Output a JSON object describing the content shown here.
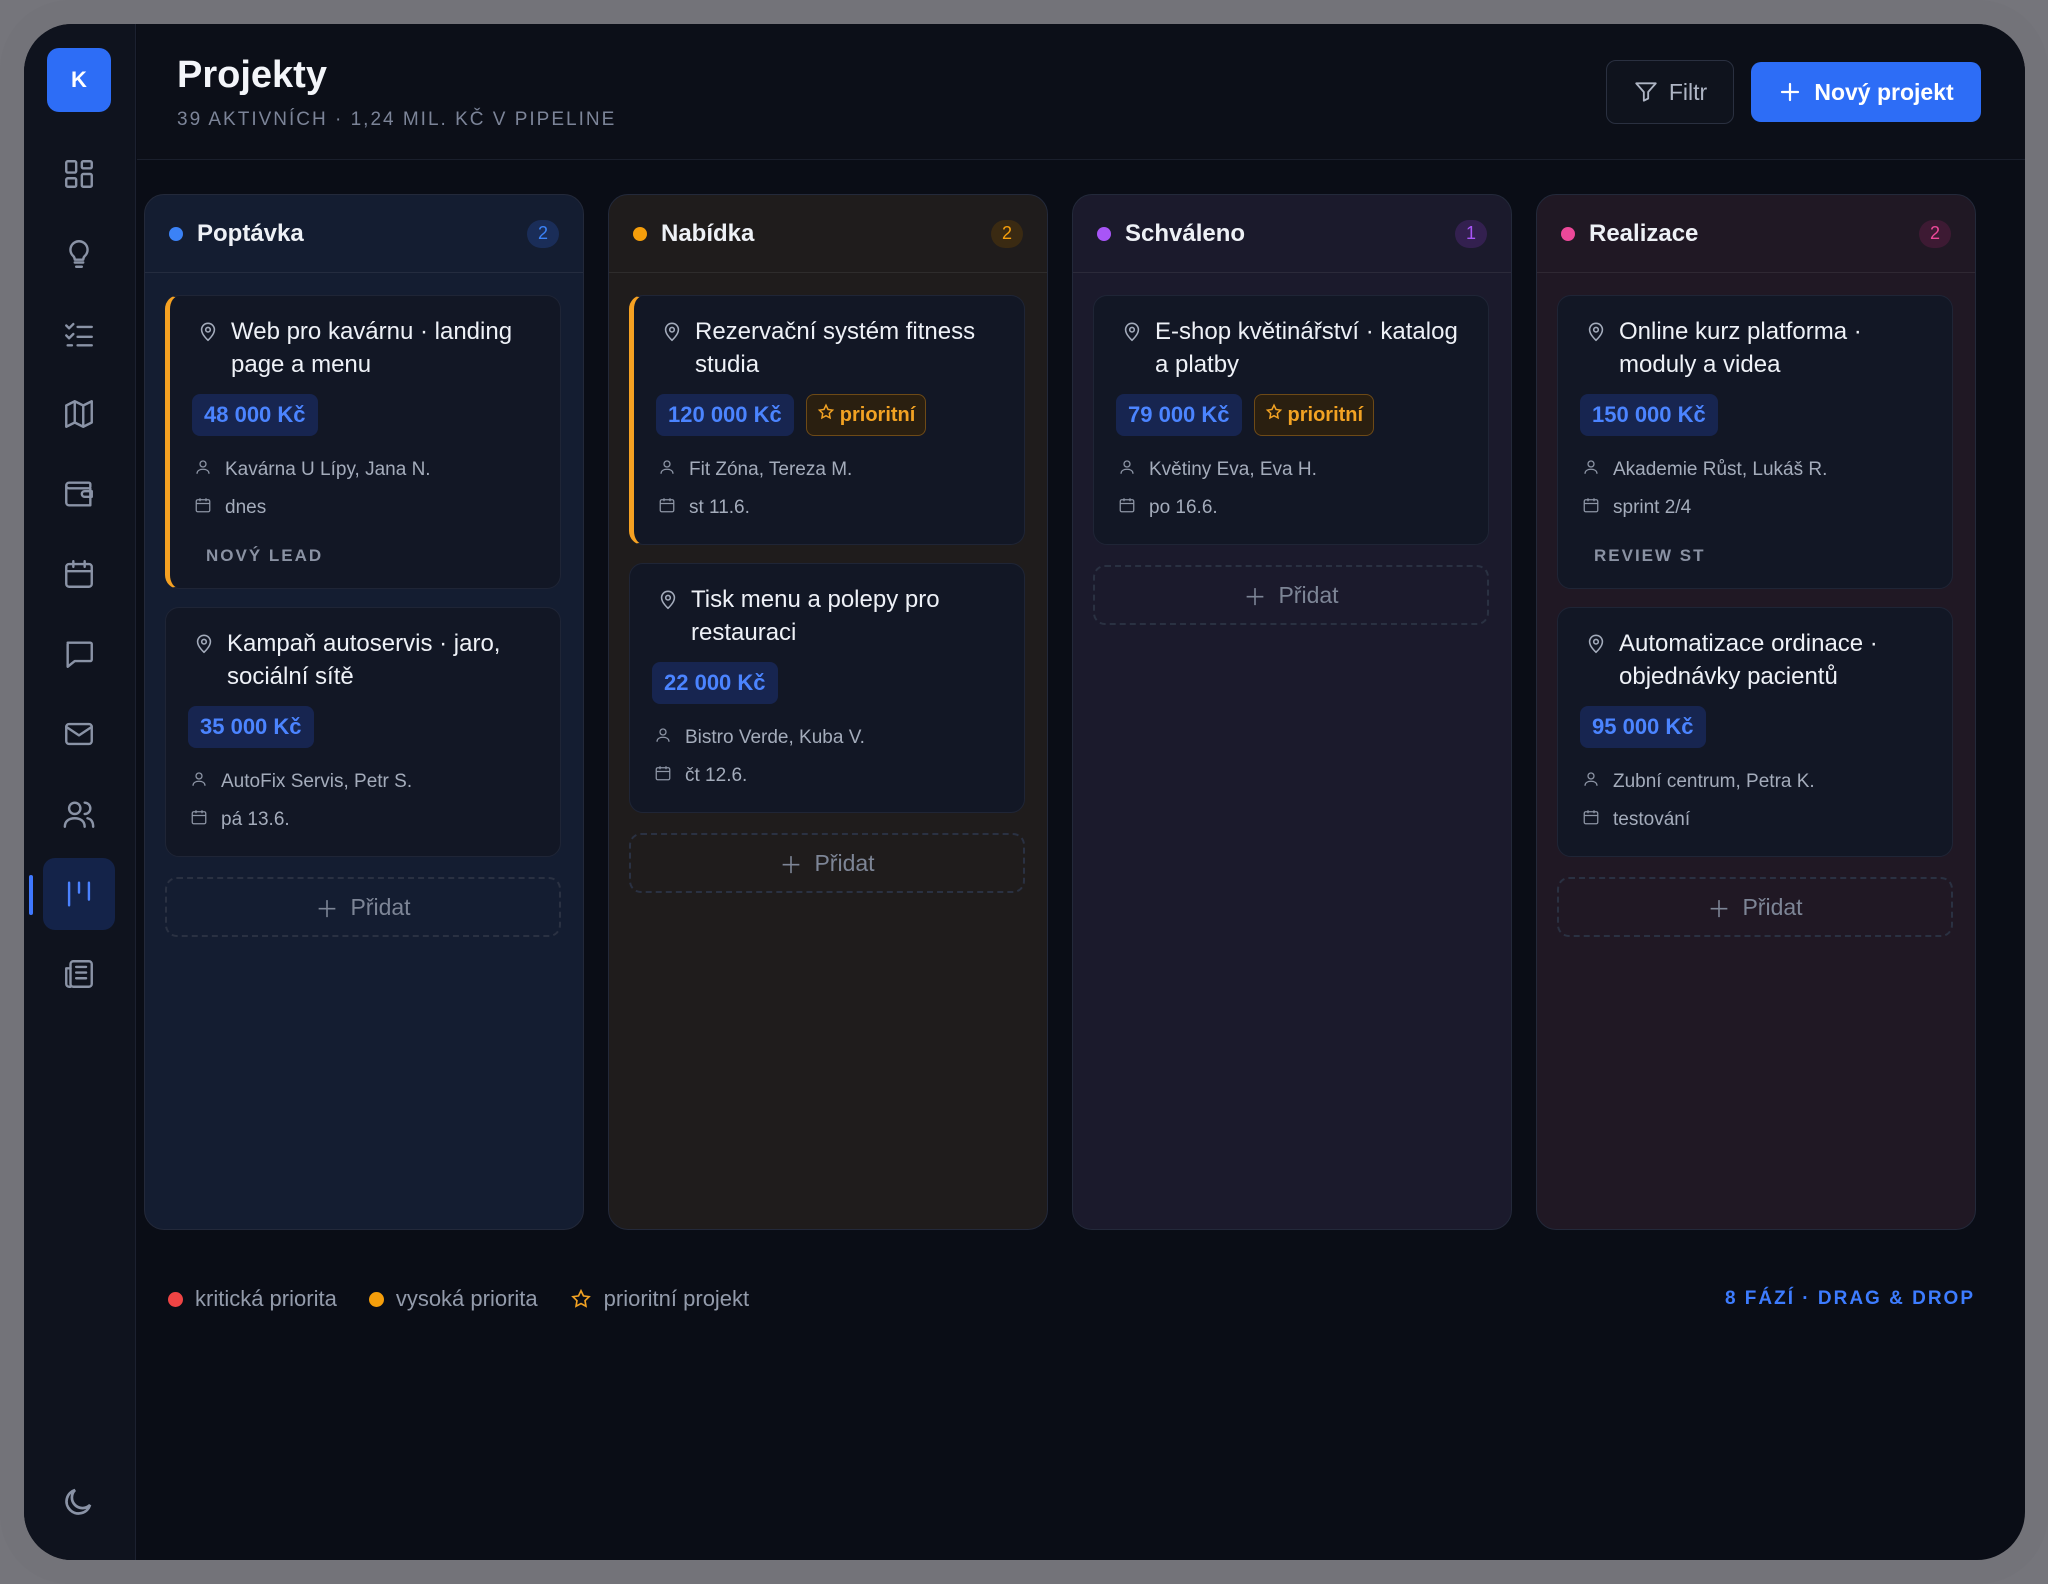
{
  "app": {
    "logo_letter": "K"
  },
  "header": {
    "title": "Projekty",
    "subtitle": "39 AKTIVNÍCH · 1,24 MIL. KČ V PIPELINE",
    "filter_label": "Filtr",
    "new_project_label": "Nový projekt"
  },
  "sidebar": {
    "items": [
      {
        "icon": "dashboard-icon"
      },
      {
        "icon": "lightbulb-icon"
      },
      {
        "icon": "checklist-icon"
      },
      {
        "icon": "map-icon"
      },
      {
        "icon": "wallet-icon"
      },
      {
        "icon": "calendar-icon"
      },
      {
        "icon": "chat-icon"
      },
      {
        "icon": "mail-icon"
      },
      {
        "icon": "users-icon"
      },
      {
        "icon": "kanban-icon",
        "active": true
      },
      {
        "icon": "newspaper-icon"
      }
    ],
    "bottom_icon": "moon-icon"
  },
  "board": {
    "add_label": "Přidat",
    "columns": [
      {
        "title": "Poptávka",
        "count": "2",
        "color": "#3b82f6",
        "cards": [
          {
            "title": "Web pro kavárnu · landing page a menu",
            "price": "48 000 Kč",
            "client": "Kavárna U Lípy, Jana N.",
            "date": "dnes",
            "tag": "NOVÝ LEAD",
            "accent": "#f5a122"
          },
          {
            "title": "Kampaň autoservis · jaro, sociální sítě",
            "price": "35 000 Kč",
            "client": "AutoFix Servis, Petr S.",
            "date": "pá 13.6."
          }
        ]
      },
      {
        "title": "Nabídka",
        "count": "2",
        "color": "#f59e0b",
        "cards": [
          {
            "title": "Rezervační systém fitness studia",
            "price": "120 000 Kč",
            "priority_label": "prioritní",
            "client": "Fit Zóna, Tereza M.",
            "date": "st 11.6.",
            "accent": "#f5a122"
          },
          {
            "title": "Tisk menu a polepy pro restauraci",
            "price": "22 000 Kč",
            "client": "Bistro Verde, Kuba V.",
            "date": "čt 12.6."
          }
        ]
      },
      {
        "title": "Schváleno",
        "count": "1",
        "color": "#a855f7",
        "cards": [
          {
            "title": "E-shop květinářství · katalog a platby",
            "price": "79 000 Kč",
            "priority_label": "prioritní",
            "client": "Květiny Eva, Eva H.",
            "date": "po 16.6."
          }
        ]
      },
      {
        "title": "Realizace",
        "count": "2",
        "color": "#ec4899",
        "cards": [
          {
            "title": "Online kurz platforma · moduly a videa",
            "price": "150 000 Kč",
            "client": "Akademie Růst, Lukáš R.",
            "date": "sprint 2/4",
            "tag": "REVIEW ST"
          },
          {
            "title": "Automatizace ordinace · objednávky pacientů",
            "price": "95 000 Kč",
            "client": "Zubní centrum, Petra K.",
            "date": "testování"
          }
        ]
      }
    ]
  },
  "legend": {
    "critical": "kritická priorita",
    "high": "vysoká priorita",
    "priority_project": "prioritní projekt",
    "critical_color": "#ef4444",
    "high_color": "#f59e0b"
  },
  "footer": {
    "phases": "8 FÁZÍ · DRAG & DROP"
  }
}
